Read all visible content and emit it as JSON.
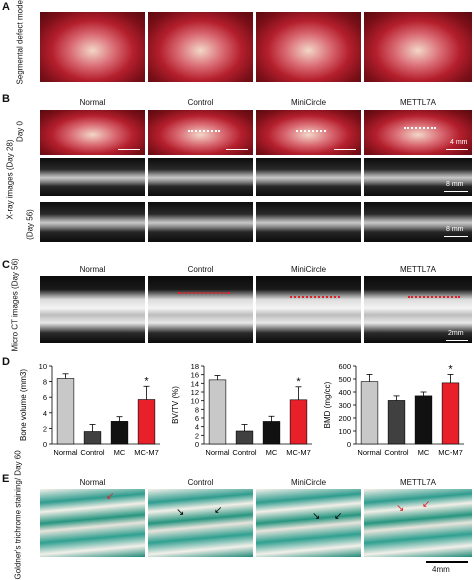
{
  "panels": {
    "a": {
      "label": "A",
      "row_label": "Segmental defect model"
    },
    "b": {
      "label": "B",
      "columns": [
        "Normal",
        "Control",
        "MiniCircle",
        "METTL7A"
      ],
      "row_day0": "Day 0",
      "row_xray28": "X-ray images (Day 28)",
      "row_xray56": "(Day 56)",
      "scale_day0": "4 mm",
      "scale_xray28": "8 mm",
      "scale_xray56": "8 mm"
    },
    "c": {
      "label": "C",
      "columns": [
        "Normal",
        "Control",
        "MiniCircle",
        "METTL7A"
      ],
      "row_label": "Micro CT images (Day 56)",
      "scale": "2mm"
    },
    "d": {
      "label": "D"
    },
    "e": {
      "label": "E",
      "columns": [
        "Normal",
        "Control",
        "MiniCircle",
        "METTL7A"
      ],
      "row_label": "Goldner's trichrome staining/ Day 60",
      "scale": "4mm"
    }
  },
  "colors": {
    "defect_marker": "#ffffff",
    "ct_marker": "#e0202a",
    "arrow": "#e0202a",
    "bar_mc_m7": "#e8202a"
  },
  "chart_data": [
    {
      "type": "bar",
      "categories": [
        "Normal",
        "Control",
        "MC",
        "MC-M7"
      ],
      "values": [
        8.4,
        1.6,
        2.9,
        5.7
      ],
      "errors": [
        0.6,
        0.9,
        0.6,
        1.7
      ],
      "colors": [
        "#c8c8c8",
        "#404040",
        "#111111",
        "#e8202a"
      ],
      "ylabel": "Bone volume (mm3)",
      "ylim": [
        0,
        10
      ],
      "yticks": [
        "0",
        "2",
        "4",
        "6",
        "8",
        "10"
      ],
      "annotation": {
        "category": "MC-M7",
        "text": "*"
      }
    },
    {
      "type": "bar",
      "categories": [
        "Normal",
        "Control",
        "MC",
        "MC-M7"
      ],
      "values": [
        14.8,
        3.0,
        5.2,
        10.2
      ],
      "errors": [
        1.0,
        1.5,
        1.2,
        3.0
      ],
      "colors": [
        "#c8c8c8",
        "#404040",
        "#111111",
        "#e8202a"
      ],
      "ylabel": "BV/TV (%)",
      "ylim": [
        0,
        18
      ],
      "yticks": [
        "0",
        "2",
        "4",
        "6",
        "8",
        "10",
        "12",
        "14",
        "16",
        "18"
      ],
      "annotation": {
        "category": "MC-M7",
        "text": "*"
      }
    },
    {
      "type": "bar",
      "categories": [
        "Normal",
        "Control",
        "MC",
        "MC-M7"
      ],
      "values": [
        480,
        335,
        370,
        470
      ],
      "errors": [
        55,
        35,
        30,
        65
      ],
      "colors": [
        "#c8c8c8",
        "#404040",
        "#111111",
        "#e8202a"
      ],
      "ylabel": "BMD (mg/cc)",
      "ylim": [
        0,
        600
      ],
      "yticks": [
        "0",
        "100",
        "200",
        "300",
        "400",
        "500",
        "600"
      ],
      "annotation": {
        "category": "MC-M7",
        "text": "*"
      }
    }
  ]
}
